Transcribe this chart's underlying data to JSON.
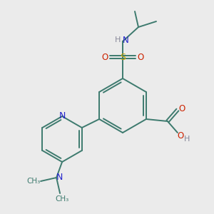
{
  "background_color": "#ebebeb",
  "bond_color": "#3d7a6e",
  "nitrogen_color": "#2222cc",
  "oxygen_color": "#cc2200",
  "sulfur_color": "#ccaa00",
  "hydrogen_color": "#888899",
  "figsize": [
    3.0,
    3.0
  ],
  "dpi": 100,
  "xlim": [
    0,
    300
  ],
  "ylim": [
    0,
    300
  ]
}
